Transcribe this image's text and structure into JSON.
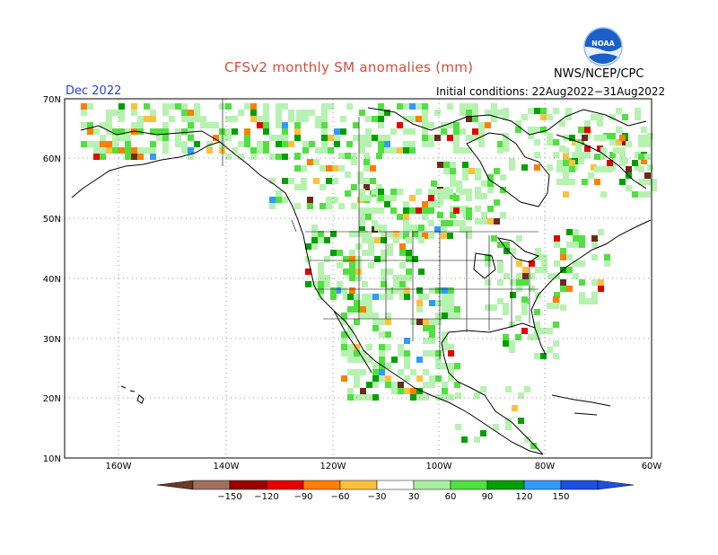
{
  "header": {
    "title": "CFSv2 monthly SM anomalies (mm)",
    "org": "NWS/NCEP/CPC",
    "month": "Dec 2022",
    "init": "Initial conditions: 22Aug2022−31Aug2022",
    "logo_text": "NOAA"
  },
  "map": {
    "lat_labels": [
      "70N",
      "60N",
      "50N",
      "40N",
      "30N",
      "20N",
      "10N"
    ],
    "lon_labels": [
      "160W",
      "140W",
      "120W",
      "100W",
      "80W",
      "60W"
    ]
  },
  "colorbar": {
    "labels": [
      "−150",
      "−120",
      "−90",
      "−60",
      "−30",
      "30",
      "60",
      "90",
      "120",
      "150"
    ],
    "colors": [
      "#a0715f",
      "#990000",
      "#e60000",
      "#ff7f00",
      "#ffc040",
      "#ffffff",
      "#a8f0a0",
      "#50e040",
      "#00a000",
      "#3399ff",
      "#1e4fe0"
    ]
  },
  "colors": {
    "title": "#d94a3a",
    "month": "#2a3fd0",
    "anomaly_dry_strong": "#6b2a1a",
    "anomaly_dry": "#990000",
    "anomaly_wet_light": "#b6f2b0",
    "anomaly_wet": "#50e040",
    "anomaly_wet_strong": "#00a000"
  }
}
